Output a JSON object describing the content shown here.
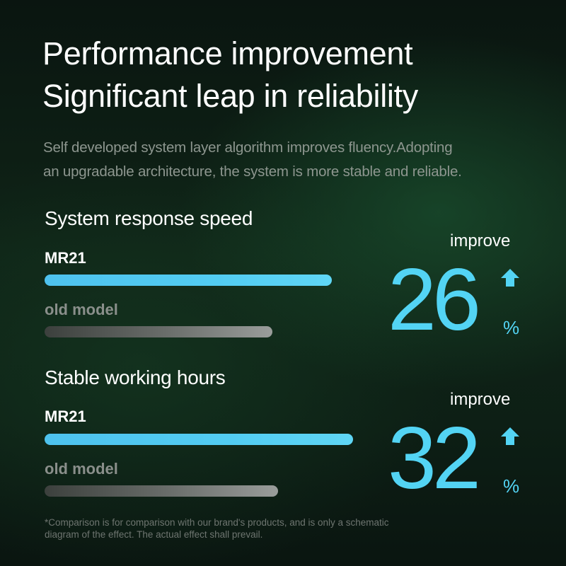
{
  "header": {
    "title_line1": "Performance improvement",
    "title_line2": "Significant leap in reliability",
    "subtitle_line1": "Self developed system layer algorithm improves fluency.Adopting",
    "subtitle_line2": "an upgradable architecture, the system is more stable and reliable."
  },
  "colors": {
    "accent": "#53d4f4",
    "new_bar": "#52ccf2",
    "old_bar": "#8a8f8b"
  },
  "chart_data": [
    {
      "type": "bar",
      "title": "System response speed",
      "categories": [
        "MR21",
        "old model"
      ],
      "values": [
        126,
        100
      ],
      "improvement_label": "improve",
      "improvement_value": "26",
      "improvement_unit": "%"
    },
    {
      "type": "bar",
      "title": "Stable working hours",
      "categories": [
        "MR21",
        "old model"
      ],
      "values": [
        132,
        100
      ],
      "improvement_label": "improve",
      "improvement_value": "32",
      "improvement_unit": "%"
    }
  ],
  "footnote": {
    "line1": "*Comparison is for comparison with our brand's products, and is only a schematic",
    "line2": "diagram of the effect. The actual effect shall prevail."
  },
  "icons": {
    "arrow": "arrow-up-icon"
  }
}
